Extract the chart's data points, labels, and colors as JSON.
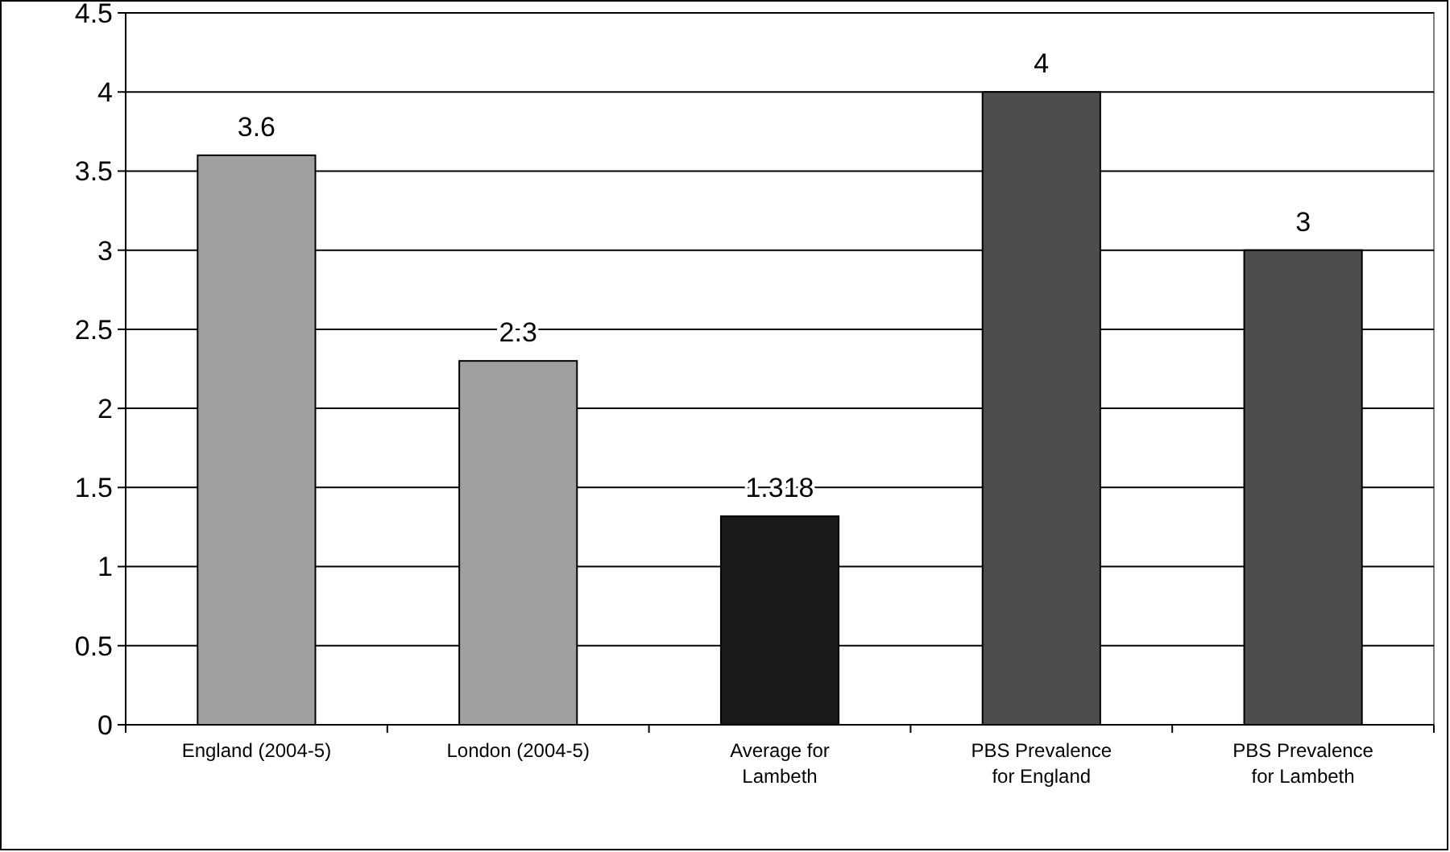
{
  "chart_data": {
    "type": "bar",
    "categories": [
      "England (2004-5)",
      "London (2004-5)",
      "Average for\nLambeth",
      "PBS Prevalence\nfor England",
      "PBS Prevalence\nfor Lambeth"
    ],
    "values": [
      3.6,
      2.3,
      1.318,
      4,
      3
    ],
    "colors": [
      "#a0a0a0",
      "#a0a0a0",
      "#1a1a1a",
      "#4d4d4d",
      "#4d4d4d"
    ],
    "ylim": [
      0,
      4.5
    ],
    "yticks": [
      0,
      0.5,
      1,
      1.5,
      2,
      2.5,
      3,
      3.5,
      4,
      4.5
    ],
    "grid": "y",
    "data_labels": true
  }
}
